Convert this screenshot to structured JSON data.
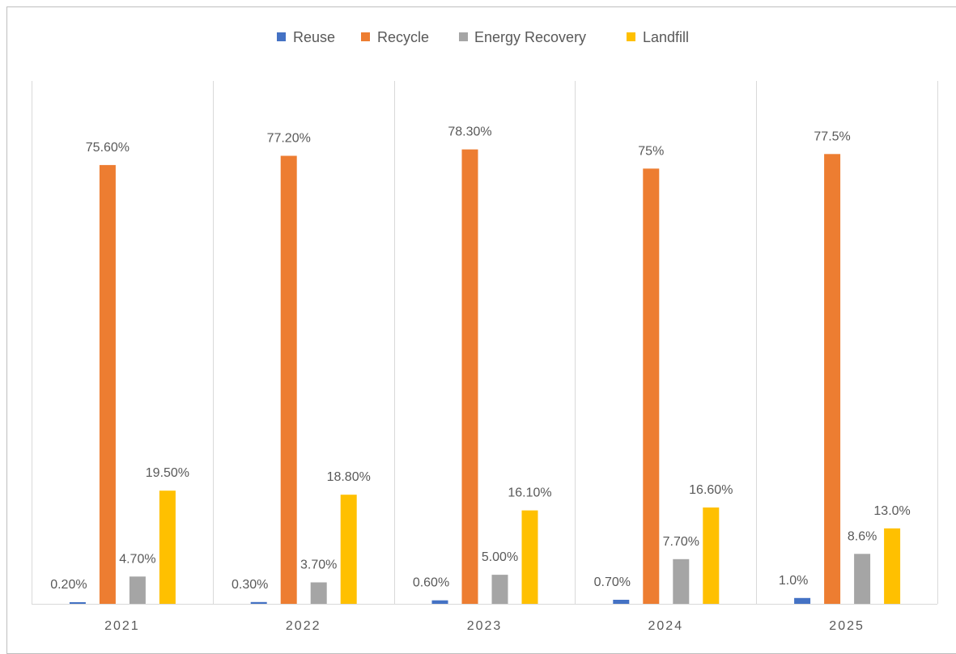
{
  "chart_data": {
    "type": "bar",
    "title": "",
    "xlabel": "",
    "ylabel": "",
    "ylim": [
      0,
      90
    ],
    "grid": "vertical category separators only",
    "legend_position": "top-center",
    "categories": [
      "2021",
      "2022",
      "2023",
      "2024",
      "2025"
    ],
    "series": [
      {
        "name": "Reuse",
        "color": "#4472C4",
        "values": [
          0.2,
          0.3,
          0.6,
          0.7,
          1.0
        ],
        "labels": [
          "0.20%",
          "0.30%",
          "0.60%",
          "0.70%",
          "1.0%"
        ]
      },
      {
        "name": "Recycle",
        "color": "#ED7D31",
        "values": [
          75.6,
          77.2,
          78.3,
          75.0,
          77.5
        ],
        "labels": [
          "75.60%",
          "77.20%",
          "78.30%",
          "75%",
          "77.5%"
        ]
      },
      {
        "name": "Energy Recovery",
        "color": "#A5A5A5",
        "values": [
          4.7,
          3.7,
          5.0,
          7.7,
          8.6
        ],
        "labels": [
          "4.70%",
          "3.70%",
          "5.00%",
          "7.70%",
          "8.6%"
        ]
      },
      {
        "name": "Landfill",
        "color": "#FFC000",
        "values": [
          19.5,
          18.8,
          16.1,
          16.6,
          13.0
        ],
        "labels": [
          "19.50%",
          "18.80%",
          "16.10%",
          "16.60%",
          "13.0%"
        ]
      }
    ]
  }
}
